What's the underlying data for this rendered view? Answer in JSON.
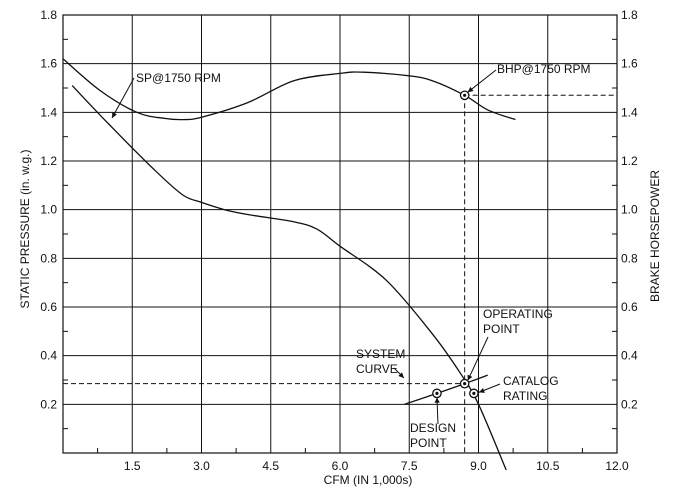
{
  "chart_data": {
    "type": "line",
    "xlabel": "CFM (IN 1,000s)",
    "ylabel_left": "STATIC PRESSURE (in. w.g.)",
    "ylabel_right": "BRAKE HORSEPOWER",
    "xlim": [
      0,
      12
    ],
    "ylim": [
      0,
      1.8
    ],
    "grid": true,
    "x_ticks": [
      {
        "value": 1.5,
        "label": "1.5"
      },
      {
        "value": 3.0,
        "label": "3.0"
      },
      {
        "value": 4.5,
        "label": "4.5"
      },
      {
        "value": 6.0,
        "label": "6.0"
      },
      {
        "value": 7.5,
        "label": "7.5"
      },
      {
        "value": 9.0,
        "label": "9.0"
      },
      {
        "value": 10.5,
        "label": "10.5"
      },
      {
        "value": 12.0,
        "label": "12.0"
      }
    ],
    "y_ticks": [
      {
        "value": 0.2,
        "label": "0.2"
      },
      {
        "value": 0.4,
        "label": "0.4"
      },
      {
        "value": 0.6,
        "label": "0.6"
      },
      {
        "value": 0.8,
        "label": "0.8"
      },
      {
        "value": 1.0,
        "label": "1.0"
      },
      {
        "value": 1.2,
        "label": "1.2"
      },
      {
        "value": 1.4,
        "label": "1.4"
      },
      {
        "value": 1.6,
        "label": "1.6"
      },
      {
        "value": 1.8,
        "label": "1.8"
      }
    ],
    "y_ticks_right": [
      {
        "value": 0.2,
        "label": "0.2"
      },
      {
        "value": 0.4,
        "label": "0.4"
      },
      {
        "value": 0.6,
        "label": "0.6"
      },
      {
        "value": 0.8,
        "label": "0.8"
      },
      {
        "value": 1.0,
        "label": "1.0"
      },
      {
        "value": 1.2,
        "label": "1.2"
      },
      {
        "value": 1.4,
        "label": "1.4"
      },
      {
        "value": 1.6,
        "label": "1.6"
      },
      {
        "value": 1.8,
        "label": "1.8"
      }
    ],
    "series": [
      {
        "name": "SP@1750 RPM",
        "x": [
          0.2,
          1.0,
          2.0,
          2.6,
          3.0,
          3.5,
          4.0,
          5.0,
          5.5,
          6.0,
          7.0,
          8.0,
          8.6,
          9.0,
          9.6
        ],
        "y": [
          1.51,
          1.35,
          1.16,
          1.06,
          1.03,
          1.0,
          0.98,
          0.95,
          0.92,
          0.85,
          0.71,
          0.49,
          0.33,
          0.2,
          -0.07
        ]
      },
      {
        "name": "BHP@1750 RPM",
        "x": [
          0.0,
          0.8,
          1.6,
          2.2,
          2.6,
          3.0,
          4.0,
          5.0,
          6.0,
          6.5,
          7.5,
          8.0,
          8.7,
          9.2,
          9.8
        ],
        "y": [
          1.62,
          1.49,
          1.4,
          1.375,
          1.37,
          1.38,
          1.44,
          1.53,
          1.56,
          1.565,
          1.55,
          1.53,
          1.47,
          1.41,
          1.37
        ]
      },
      {
        "name": "SYSTEM CURVE",
        "x": [
          7.4,
          8.1,
          8.7,
          9.2
        ],
        "y": [
          0.2,
          0.245,
          0.285,
          0.32
        ]
      }
    ],
    "points": [
      {
        "label": "BHP@1750 RPM",
        "x": 8.7,
        "y": 1.47
      },
      {
        "label": "OPERATING POINT",
        "x": 8.7,
        "y": 0.285
      },
      {
        "label": "DESIGN POINT",
        "x": 8.1,
        "y": 0.245
      },
      {
        "label": "CATALOG RATING",
        "x": 8.9,
        "y": 0.245
      }
    ],
    "annotations": {
      "sp": "SP@1750 RPM",
      "bhp": "BHP@1750 RPM",
      "operating_1": "OPERATING",
      "operating_2": "POINT",
      "system_1": "SYSTEM",
      "system_2": "CURVE",
      "catalog_1": "CATALOG",
      "catalog_2": "RATING",
      "design_1": "DESIGN",
      "design_2": "POINT"
    }
  }
}
